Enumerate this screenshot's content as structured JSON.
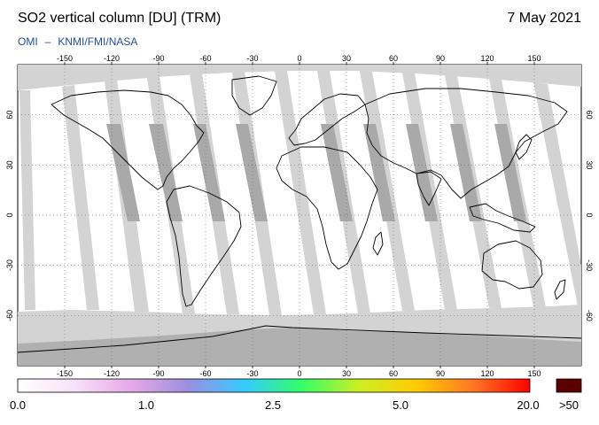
{
  "header": {
    "title": "SO2 vertical column [DU] (TRM)",
    "date": "7 May 2021",
    "credit_left": "OMI",
    "credit_dash": "–",
    "credit_right": "KNMI/FMI/NASA"
  },
  "map": {
    "projection": "equirectangular",
    "lon_range": [
      -180,
      180
    ],
    "lat_range": [
      -90,
      90
    ],
    "lon_ticks": [
      -150,
      -120,
      -90,
      -60,
      -30,
      0,
      30,
      60,
      90,
      120,
      150
    ],
    "lat_ticks": [
      -60,
      -30,
      0,
      30,
      60
    ],
    "grid": "dotted",
    "colors": {
      "background_ocean_land": "#ffffff",
      "no_data": "#d3d3d3",
      "overlap_swath": "#a9a9a9",
      "coastline": "#000000"
    }
  },
  "colorbar": {
    "labels": [
      "0.0",
      "1.0",
      "2.5",
      "5.0",
      "20.0"
    ],
    "overflow_label": ">50",
    "colors": [
      "#ffffff",
      "#f7e2f7",
      "#e6a8e6",
      "#9a8fe0",
      "#33ccff",
      "#33ff66",
      "#ccee22",
      "#ffcc00",
      "#ff7722",
      "#ff0000",
      "#5a0000"
    ]
  }
}
